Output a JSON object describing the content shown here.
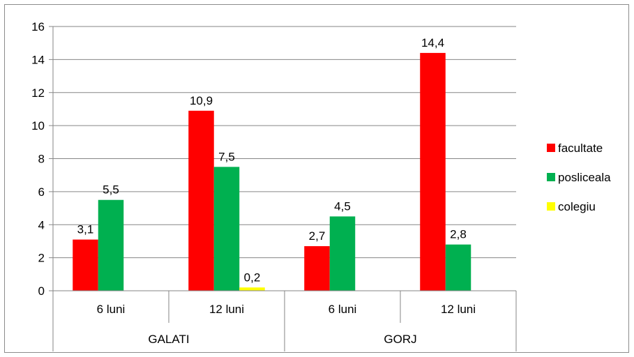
{
  "chart_data": {
    "type": "bar",
    "groups": [
      {
        "label": "GALATI",
        "categories": [
          "6 luni",
          "12 luni"
        ]
      },
      {
        "label": "GORJ",
        "categories": [
          "6 luni",
          "12 luni"
        ]
      }
    ],
    "categories": [
      "6 luni",
      "12 luni",
      "6 luni",
      "12 luni"
    ],
    "series": [
      {
        "name": "facultate",
        "color": "#ff0000",
        "values": [
          3.1,
          10.9,
          2.7,
          14.4
        ],
        "labels": [
          "3,1",
          "10,9",
          "2,7",
          "14,4"
        ]
      },
      {
        "name": "posliceala",
        "color": "#00b050",
        "values": [
          5.5,
          7.5,
          4.5,
          2.8
        ],
        "labels": [
          "5,5",
          "7,5",
          "4,5",
          "2,8"
        ]
      },
      {
        "name": "colegiu",
        "color": "#ffff00",
        "values": [
          null,
          0.2,
          null,
          null
        ],
        "labels": [
          null,
          "0,2",
          null,
          null
        ]
      }
    ],
    "ylim": [
      0,
      16
    ],
    "yticks": [
      0,
      2,
      4,
      6,
      8,
      10,
      12,
      14,
      16
    ],
    "grid": true,
    "legend_position": "right"
  }
}
